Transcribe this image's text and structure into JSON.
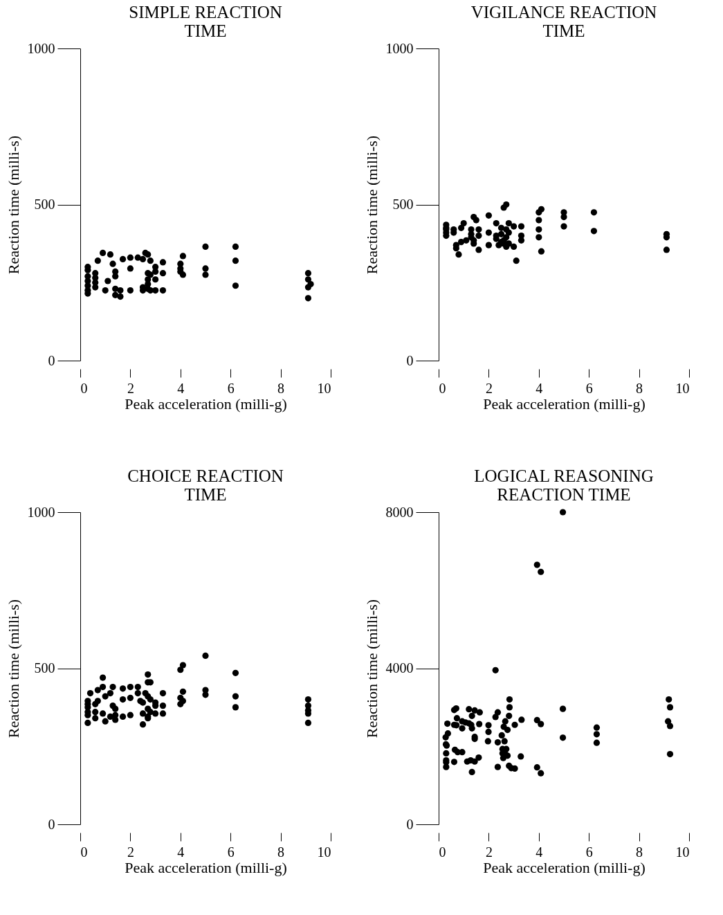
{
  "chart_data": [
    {
      "type": "scatter",
      "title": "SIMPLE REACTION TIME",
      "xlabel": "Peak acceleration (milli-g)",
      "ylabel": "Reaction time (milli-s)",
      "xlim": [
        0,
        10
      ],
      "ylim": [
        0,
        1000
      ],
      "xticks": [
        0,
        2,
        4,
        6,
        8,
        10
      ],
      "yticks": [
        0,
        500,
        1000
      ],
      "marker": "circle",
      "series": [
        {
          "color": "#000000",
          "x": [
            0.3,
            0.3,
            0.3,
            0.3,
            0.3,
            0.3,
            0.3,
            0.6,
            0.6,
            0.6,
            0.6,
            0.7,
            0.9,
            1.0,
            1.1,
            1.2,
            1.3,
            1.4,
            1.4,
            1.4,
            1.4,
            1.6,
            1.6,
            1.7,
            2.0,
            2.0,
            2.0,
            2.3,
            2.5,
            2.5,
            2.5,
            2.6,
            2.7,
            2.7,
            2.7,
            2.7,
            2.7,
            2.8,
            2.8,
            2.8,
            3.0,
            3.0,
            3.0,
            3.0,
            3.3,
            3.3,
            3.3,
            4.0,
            4.0,
            4.0,
            4.1,
            4.1,
            5.0,
            5.0,
            5.0,
            6.2,
            6.2,
            6.2,
            9.1,
            9.1,
            9.1,
            9.1,
            9.2
          ],
          "values": [
            300,
            290,
            270,
            255,
            240,
            225,
            215,
            280,
            265,
            250,
            235,
            320,
            345,
            225,
            255,
            340,
            310,
            285,
            270,
            230,
            210,
            225,
            205,
            325,
            330,
            295,
            225,
            330,
            325,
            235,
            225,
            345,
            340,
            280,
            260,
            245,
            230,
            320,
            275,
            225,
            300,
            285,
            260,
            225,
            315,
            280,
            225,
            310,
            295,
            285,
            335,
            275,
            365,
            295,
            275,
            365,
            320,
            240,
            280,
            260,
            235,
            200,
            245
          ]
        }
      ]
    },
    {
      "type": "scatter",
      "title": "VIGILANCE REACTION TIME",
      "xlabel": "Peak acceleration (milli-g)",
      "ylabel": "Reaction time (milli-s)",
      "xlim": [
        0,
        10
      ],
      "ylim": [
        0,
        1000
      ],
      "xticks": [
        0,
        2,
        4,
        6,
        8,
        10
      ],
      "yticks": [
        0,
        500,
        1000
      ],
      "marker": "circle",
      "series": [
        {
          "color": "#000000",
          "x": [
            0.3,
            0.3,
            0.3,
            0.3,
            0.3,
            0.6,
            0.6,
            0.7,
            0.7,
            0.8,
            0.9,
            0.9,
            1.0,
            1.1,
            1.3,
            1.3,
            1.3,
            1.4,
            1.4,
            1.4,
            1.5,
            1.6,
            1.6,
            1.6,
            2.0,
            2.0,
            2.0,
            2.3,
            2.3,
            2.3,
            2.4,
            2.5,
            2.5,
            2.5,
            2.6,
            2.6,
            2.6,
            2.7,
            2.7,
            2.7,
            2.7,
            2.8,
            2.8,
            2.8,
            3.0,
            3.0,
            3.1,
            3.3,
            3.3,
            3.3,
            4.0,
            4.0,
            4.0,
            4.0,
            4.1,
            4.1,
            5.0,
            5.0,
            5.0,
            6.2,
            6.2,
            9.1,
            9.1,
            9.1
          ],
          "values": [
            435,
            425,
            420,
            410,
            400,
            420,
            410,
            360,
            370,
            340,
            380,
            425,
            440,
            385,
            405,
            395,
            420,
            460,
            375,
            385,
            450,
            420,
            400,
            355,
            465,
            410,
            370,
            440,
            400,
            390,
            370,
            425,
            380,
            405,
            490,
            385,
            375,
            500,
            420,
            395,
            365,
            440,
            410,
            375,
            430,
            365,
            320,
            430,
            400,
            385,
            475,
            450,
            420,
            395,
            485,
            350,
            475,
            460,
            430,
            475,
            415,
            405,
            395,
            355
          ]
        }
      ]
    },
    {
      "type": "scatter",
      "title": "CHOICE REACTION TIME",
      "xlabel": "Peak acceleration (milli-g)",
      "ylabel": "Reaction time (milli-s)",
      "xlim": [
        0,
        10
      ],
      "ylim": [
        0,
        1000
      ],
      "xticks": [
        0,
        2,
        4,
        6,
        8,
        10
      ],
      "yticks": [
        0,
        500,
        1000
      ],
      "marker": "circle",
      "series": [
        {
          "color": "#000000",
          "x": [
            0.3,
            0.3,
            0.3,
            0.3,
            0.3,
            0.3,
            0.4,
            0.6,
            0.6,
            0.6,
            0.7,
            0.7,
            0.9,
            0.9,
            0.9,
            1.0,
            1.0,
            1.2,
            1.2,
            1.3,
            1.3,
            1.4,
            1.4,
            1.4,
            1.7,
            1.7,
            1.7,
            2.0,
            2.0,
            2.0,
            2.3,
            2.3,
            2.4,
            2.5,
            2.5,
            2.5,
            2.6,
            2.7,
            2.7,
            2.7,
            2.7,
            2.7,
            2.7,
            2.8,
            2.8,
            2.8,
            3.0,
            3.0,
            3.0,
            3.3,
            3.3,
            3.3,
            4.0,
            4.0,
            4.0,
            4.1,
            4.1,
            4.1,
            5.0,
            5.0,
            5.0,
            6.2,
            6.2,
            6.2,
            9.1,
            9.1,
            9.1,
            9.1,
            9.1
          ],
          "values": [
            395,
            385,
            375,
            360,
            350,
            325,
            420,
            385,
            360,
            340,
            395,
            430,
            440,
            470,
            355,
            410,
            330,
            420,
            345,
            440,
            380,
            370,
            350,
            335,
            435,
            400,
            345,
            440,
            405,
            350,
            440,
            420,
            395,
            390,
            355,
            320,
            420,
            480,
            455,
            370,
            345,
            340,
            410,
            455,
            400,
            360,
            390,
            355,
            380,
            420,
            380,
            355,
            495,
            405,
            385,
            510,
            425,
            395,
            540,
            430,
            415,
            485,
            410,
            375,
            400,
            380,
            365,
            355,
            325
          ]
        }
      ]
    },
    {
      "type": "scatter",
      "title": "LOGICAL REASONING REACTION TIME",
      "xlabel": "Peak acceleration (milli-g)",
      "ylabel": "Reaction time (milli-s)",
      "xlim": [
        0,
        10
      ],
      "ylim": [
        0,
        8000
      ],
      "xticks": [
        0,
        2,
        4,
        6,
        8,
        10
      ],
      "yticks": [
        0,
        4000,
        8000
      ],
      "marker": "circle",
      "series": [
        {
          "color": "#000000",
          "x": [
            4.96,
            3.93,
            4.08,
            2.27,
            2.83,
            2.83,
            9.19,
            9.24,
            4.96,
            0.7,
            0.62,
            1.21,
            1.44,
            1.64,
            1.33,
            2.36,
            2.27,
            2.81,
            3.31,
            3.93,
            4.08,
            9.16,
            9.24,
            0.35,
            0.62,
            0.71,
            0.73,
            0.94,
            1.07,
            1.21,
            1.3,
            1.33,
            0.94,
            1.62,
            1.99,
            1.99,
            2.66,
            2.6,
            2.75,
            3.04,
            6.31,
            6.31,
            6.31,
            4.96,
            9.24,
            0.37,
            0.28,
            0.29,
            0.32,
            0.3,
            0.3,
            0.3,
            0.3,
            0.62,
            0.65,
            0.76,
            0.94,
            1.44,
            1.44,
            1.14,
            1.28,
            1.44,
            1.6,
            1.33,
            1.97,
            2.36,
            2.52,
            2.63,
            2.55,
            2.7,
            2.55,
            2.65,
            2.75,
            2.58,
            2.36,
            2.81,
            2.9,
            3.04,
            3.28,
            3.93,
            4.08
          ],
          "values": [
            8000,
            6650,
            6470,
            3950,
            3200,
            3000,
            3200,
            3000,
            2960,
            2970,
            2930,
            2950,
            2920,
            2870,
            2780,
            2870,
            2750,
            2780,
            2680,
            2670,
            2570,
            2640,
            2520,
            2580,
            2550,
            2540,
            2720,
            2640,
            2610,
            2590,
            2550,
            2460,
            2460,
            2570,
            2540,
            2370,
            2640,
            2500,
            2420,
            2550,
            2480,
            2310,
            2090,
            2220,
            1800,
            2330,
            2230,
            2050,
            2020,
            1820,
            1640,
            1590,
            1470,
            1600,
            1910,
            1850,
            1850,
            2240,
            2190,
            1610,
            1640,
            1610,
            1710,
            1340,
            2130,
            2100,
            2280,
            2130,
            1930,
            1930,
            1820,
            1820,
            1760,
            1700,
            1470,
            1500,
            1440,
            1430,
            1740,
            1460,
            1310
          ]
        }
      ]
    }
  ]
}
